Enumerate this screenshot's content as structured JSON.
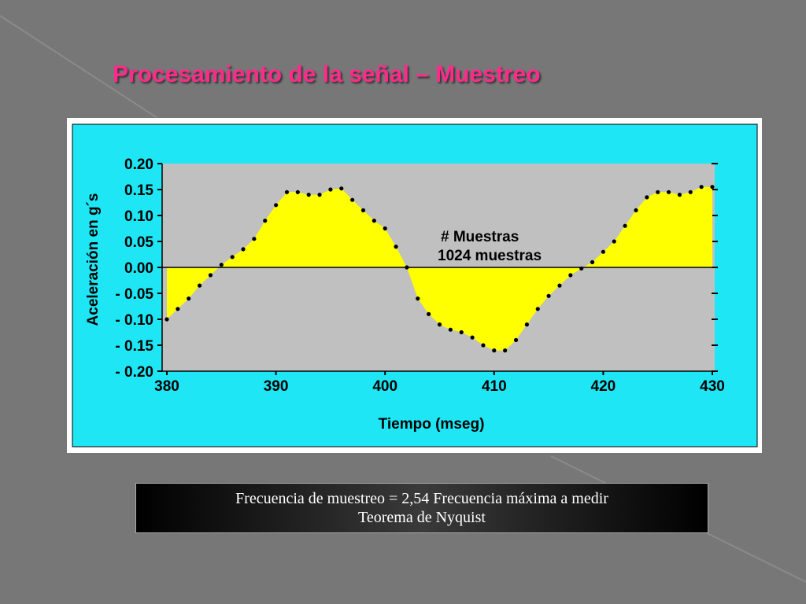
{
  "slide": {
    "title": "Procesamiento de la señal – Muestreo",
    "caption": [
      "Frecuencia de muestreo = 2,54 Frecuencia máxima a medir",
      "Teorema de Nyquist"
    ]
  },
  "chart_data": {
    "type": "line",
    "x_label": "Tiempo  (mseg)",
    "y_label": "Aceleración en g´s",
    "annotation": [
      "# Muestras",
      "1024 muestras"
    ],
    "x": [
      380,
      381,
      382,
      383,
      384,
      385,
      386,
      387,
      388,
      389,
      390,
      391,
      392,
      393,
      394,
      395,
      396,
      397,
      398,
      399,
      400,
      401,
      402,
      403,
      404,
      405,
      406,
      407,
      408,
      409,
      410,
      411,
      412,
      413,
      414,
      415,
      416,
      417,
      418,
      419,
      420,
      421,
      422,
      423,
      424,
      425,
      426,
      427,
      428,
      429,
      430
    ],
    "series": [
      {
        "color": "#000000",
        "fill": "#ffff00",
        "values": [
          -0.1,
          -0.08,
          -0.06,
          -0.035,
          -0.015,
          0.005,
          0.02,
          0.035,
          0.055,
          0.09,
          0.12,
          0.145,
          0.145,
          0.14,
          0.14,
          0.15,
          0.152,
          0.13,
          0.11,
          0.09,
          0.075,
          0.04,
          0.0,
          -0.06,
          -0.09,
          -0.11,
          -0.12,
          -0.125,
          -0.135,
          -0.15,
          -0.16,
          -0.16,
          -0.14,
          -0.11,
          -0.08,
          -0.055,
          -0.035,
          -0.015,
          -0.002,
          0.01,
          0.03,
          0.05,
          0.08,
          0.11,
          0.135,
          0.145,
          0.145,
          0.14,
          0.145,
          0.155,
          0.155
        ]
      }
    ],
    "xlim": [
      380,
      430
    ],
    "xticks": [
      380,
      390,
      400,
      410,
      420,
      430
    ],
    "ylim": [
      -0.2,
      0.2
    ],
    "yticks": [
      {
        "value": 0.2,
        "label": "0.20"
      },
      {
        "value": 0.15,
        "label": "0.15"
      },
      {
        "value": 0.1,
        "label": "0.10"
      },
      {
        "value": 0.05,
        "label": "0.05"
      },
      {
        "value": 0,
        "label": "0.00"
      },
      {
        "value": -0.05,
        "label": "- 0.05"
      },
      {
        "value": -0.1,
        "label": "- 0.10"
      },
      {
        "value": -0.15,
        "label": "- 0.15"
      },
      {
        "value": -0.2,
        "label": "- 0.20"
      }
    ]
  }
}
